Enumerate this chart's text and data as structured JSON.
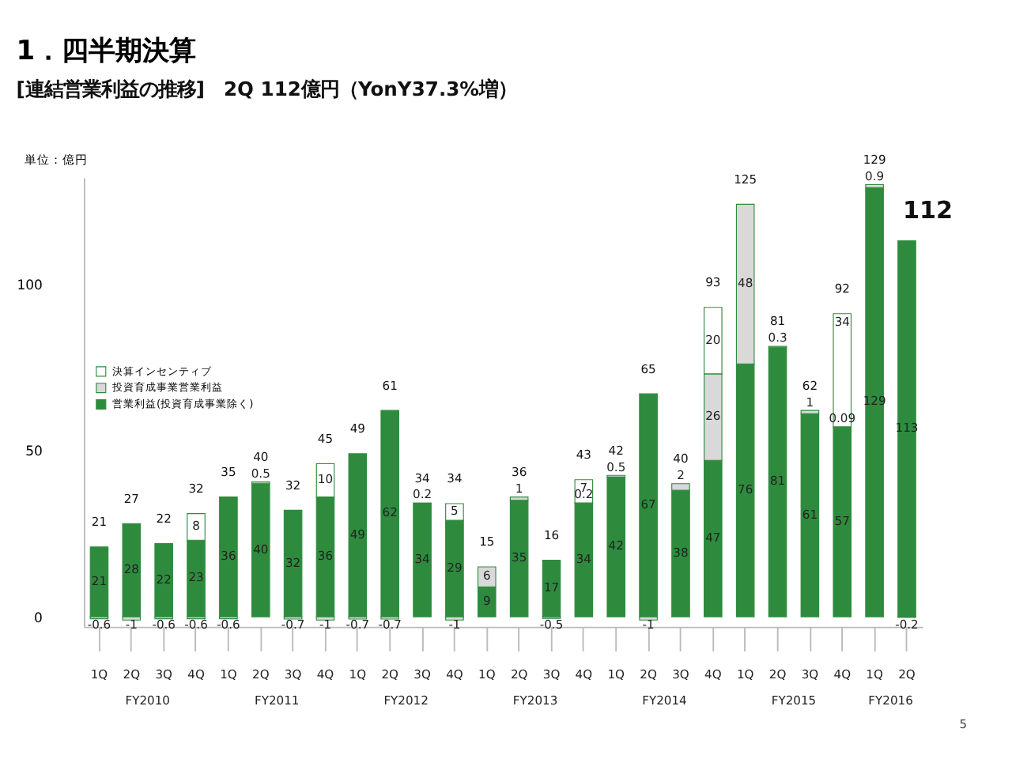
{
  "chart_data": {
    "type": "bar",
    "stacked": true,
    "title": "1．四半期決算",
    "subtitle": "[連結営業利益の推移]　2Q 112億円（YonY37.3%増）",
    "ylabel": "単位：億円",
    "categories": [
      "1Q",
      "2Q",
      "3Q",
      "4Q",
      "1Q",
      "2Q",
      "3Q",
      "4Q",
      "1Q",
      "2Q",
      "3Q",
      "4Q",
      "1Q",
      "2Q",
      "3Q",
      "4Q",
      "1Q",
      "2Q",
      "3Q",
      "4Q",
      "1Q",
      "2Q",
      "3Q",
      "4Q",
      "1Q",
      "2Q"
    ],
    "series": [
      {
        "name": "営業利益(投資育成事業除く)",
        "color": "#2e8b3e",
        "values": [
          21,
          28,
          22,
          23,
          36,
          40,
          32,
          36,
          49,
          62,
          34,
          29,
          9,
          35,
          17,
          34,
          42,
          67,
          38,
          47,
          76,
          81,
          61,
          57,
          129,
          113
        ]
      },
      {
        "name": "投資育成事業営業利益",
        "color": "#d9d9d9",
        "values": [
          -0.6,
          -1,
          -0.6,
          -0.6,
          -0.6,
          0.5,
          -0.7,
          -1,
          -0.7,
          -0.7,
          0.2,
          -1,
          6,
          1,
          -0.5,
          0.2,
          0.5,
          -1,
          2,
          26,
          48,
          0.3,
          1,
          0.09,
          0.9,
          -0.2
        ]
      },
      {
        "name": "決算インセンティブ",
        "color": "#ffffff",
        "values": [
          null,
          null,
          null,
          8,
          null,
          null,
          null,
          10,
          null,
          null,
          null,
          5,
          null,
          null,
          null,
          7,
          null,
          null,
          null,
          20,
          null,
          null,
          null,
          34,
          null,
          null
        ]
      }
    ],
    "totals": [
      "21",
      "27",
      "22",
      "32",
      "35",
      "40",
      "32",
      "45",
      "49",
      "61",
      "34",
      "34",
      "15",
      "36",
      "16",
      "43",
      "42",
      "65",
      "40",
      "93",
      "125",
      "81",
      "62",
      "92",
      "129",
      "112"
    ],
    "data_labels": true,
    "ylim": [
      -3,
      132
    ],
    "yticks": [
      0,
      50,
      100
    ],
    "grid": false,
    "legend": "left",
    "annotations": [
      "FY2010",
      "FY2011",
      "FY2012",
      "FY2013",
      "FY2014",
      "FY2015",
      "FY2016",
      "5"
    ]
  }
}
